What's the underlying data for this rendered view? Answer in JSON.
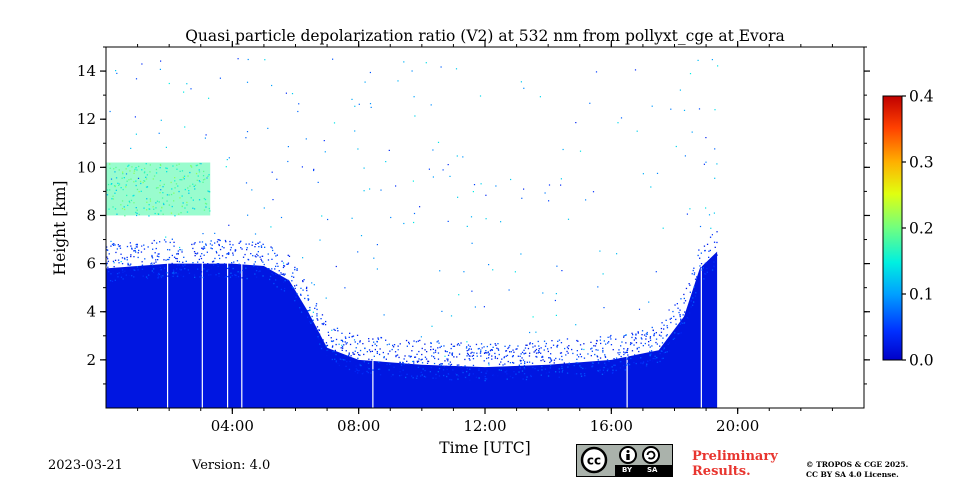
{
  "chart_data": {
    "type": "heatmap",
    "title": "Quasi particle depolarization ratio (V2) at 532 nm from pollyxt_cge at Evora",
    "xlabel": "Time [UTC]",
    "ylabel": "Height [km]",
    "xlim_hours": [
      0,
      24
    ],
    "ylim_km": [
      0,
      15
    ],
    "x_ticks": [
      {
        "hour": 4,
        "label": "04:00"
      },
      {
        "hour": 8,
        "label": "08:00"
      },
      {
        "hour": 12,
        "label": "12:00"
      },
      {
        "hour": 16,
        "label": "16:00"
      },
      {
        "hour": 20,
        "label": "20:00"
      }
    ],
    "y_ticks": [
      {
        "value": 2,
        "label": "2"
      },
      {
        "value": 4,
        "label": "4"
      },
      {
        "value": 6,
        "label": "6"
      },
      {
        "value": 8,
        "label": "8"
      },
      {
        "value": 10,
        "label": "10"
      },
      {
        "value": 12,
        "label": "12"
      },
      {
        "value": 14,
        "label": "14"
      }
    ],
    "colorbar": {
      "min": 0.0,
      "max": 0.4,
      "colormap": "jet",
      "ticks": [
        {
          "value": 0.0,
          "label": "0.0"
        },
        {
          "value": 0.1,
          "label": "0.1"
        },
        {
          "value": 0.2,
          "label": "0.2"
        },
        {
          "value": 0.3,
          "label": "0.3"
        },
        {
          "value": 0.4,
          "label": "0.4"
        }
      ]
    },
    "data_end_hour": 19.35,
    "layer_top_profile": [
      {
        "hour": 0.0,
        "top_km": 5.8,
        "value": 0.02
      },
      {
        "hour": 1.0,
        "top_km": 5.9,
        "value": 0.02
      },
      {
        "hour": 2.0,
        "top_km": 6.0,
        "value": 0.02
      },
      {
        "hour": 3.0,
        "top_km": 6.0,
        "value": 0.02
      },
      {
        "hour": 4.0,
        "top_km": 6.0,
        "value": 0.02
      },
      {
        "hour": 5.0,
        "top_km": 5.9,
        "value": 0.02
      },
      {
        "hour": 5.8,
        "top_km": 5.3,
        "value": 0.02
      },
      {
        "hour": 6.4,
        "top_km": 4.0,
        "value": 0.02
      },
      {
        "hour": 7.0,
        "top_km": 2.5,
        "value": 0.02
      },
      {
        "hour": 8.0,
        "top_km": 2.0,
        "value": 0.02
      },
      {
        "hour": 10.0,
        "top_km": 1.8,
        "value": 0.02
      },
      {
        "hour": 12.0,
        "top_km": 1.7,
        "value": 0.02
      },
      {
        "hour": 14.0,
        "top_km": 1.8,
        "value": 0.02
      },
      {
        "hour": 16.0,
        "top_km": 2.0,
        "value": 0.02
      },
      {
        "hour": 17.5,
        "top_km": 2.4,
        "value": 0.02
      },
      {
        "hour": 18.3,
        "top_km": 3.8,
        "value": 0.02
      },
      {
        "hour": 18.8,
        "top_km": 5.8,
        "value": 0.02
      },
      {
        "hour": 19.35,
        "top_km": 6.5,
        "value": 0.02
      }
    ],
    "elevated_layer": {
      "hour_start": 0.0,
      "hour_end": 3.3,
      "bottom_km": 8.0,
      "top_km": 10.2,
      "value": 0.18
    },
    "profile_gaps_hours": [
      1.95,
      3.05,
      3.85,
      4.3,
      8.45,
      16.5,
      18.85
    ]
  },
  "footer": {
    "date": "2023-03-21",
    "version": "Version: 4.0",
    "preliminary_line1": "Preliminary",
    "preliminary_line2": "Results.",
    "copyright_line1": "© TROPOS & CGE 2025.",
    "copyright_line2": "CC BY SA 4.0 License.",
    "license_by": "BY",
    "license_sa": "SA",
    "license_cc": "cc"
  }
}
